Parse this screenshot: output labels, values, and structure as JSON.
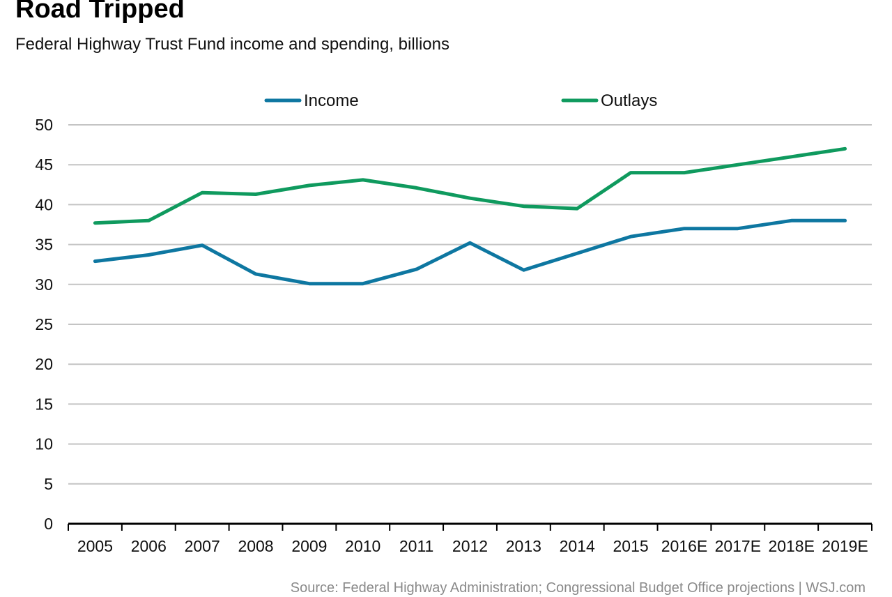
{
  "header": {
    "title": "Road Tripped",
    "subtitle": "Federal Highway Trust Fund income and spending, billions"
  },
  "footer": {
    "source": "Source: Federal Highway Administration; Congressional Budget Office projections  |  WSJ.com"
  },
  "colors": {
    "income": "#0e77a1",
    "outlays": "#0f9a5e",
    "grid": "#c4c4c4",
    "axis": "#000000"
  },
  "chart_data": {
    "type": "line",
    "title": "Road Tripped",
    "subtitle": "Federal Highway Trust Fund income and spending, billions",
    "xlabel": "",
    "ylabel": "",
    "categories": [
      "2005",
      "2006",
      "2007",
      "2008",
      "2009",
      "2010",
      "2011",
      "2012",
      "2013",
      "2014",
      "2015",
      "2016E",
      "2017E",
      "2018E",
      "2019E"
    ],
    "ylim": [
      0,
      50
    ],
    "yticks": [
      0,
      5,
      10,
      15,
      20,
      25,
      30,
      35,
      40,
      45,
      50
    ],
    "grid": true,
    "legend_position": "top",
    "series": [
      {
        "name": "Income",
        "color": "#0e77a1",
        "values": [
          32.9,
          33.7,
          34.9,
          31.3,
          30.1,
          30.1,
          31.9,
          35.2,
          31.8,
          33.9,
          36.0,
          37.0,
          37.0,
          38.0,
          38.0
        ]
      },
      {
        "name": "Outlays",
        "color": "#0f9a5e",
        "values": [
          37.7,
          38.0,
          41.5,
          41.3,
          42.4,
          43.1,
          42.1,
          40.8,
          39.8,
          39.5,
          44.0,
          44.0,
          45.0,
          46.0,
          47.0
        ]
      }
    ]
  }
}
